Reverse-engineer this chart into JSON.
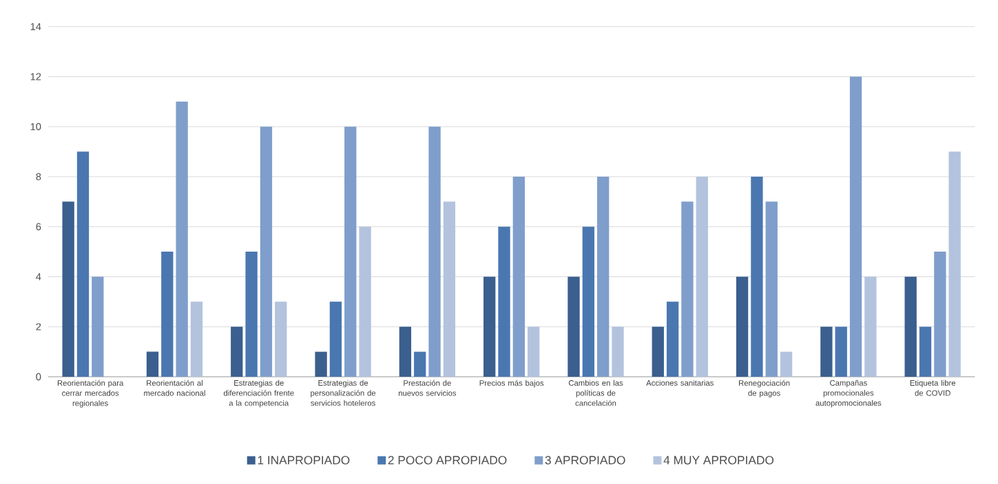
{
  "chart_data": {
    "type": "bar",
    "categories": [
      "Reorientación para cerrar mercados regionales",
      "Reorientación al mercado nacional",
      "Estrategias de diferenciación frente a la competencia",
      "Estrategias de personalización de servicios hoteleros",
      "Prestación de nuevos servicios",
      "Precios más bajos",
      "Cambios en las políticas de cancelación",
      "Acciones sanitarias",
      "Renegociación de pagos",
      "Campañas promocionales autopromocionales",
      "Etiqueta libre de COVID"
    ],
    "series": [
      {
        "name": "1 INAPROPIADO",
        "color": "#3b5f8e",
        "values": [
          7,
          1,
          2,
          1,
          2,
          4,
          4,
          2,
          4,
          2,
          4
        ]
      },
      {
        "name": "2 POCO APROPIADO",
        "color": "#4a77b0",
        "values": [
          9,
          5,
          5,
          3,
          1,
          6,
          6,
          3,
          8,
          2,
          2
        ]
      },
      {
        "name": "3 APROPIADO",
        "color": "#7f9ecb",
        "values": [
          4,
          11,
          10,
          10,
          10,
          8,
          8,
          7,
          7,
          12,
          5
        ]
      },
      {
        "name": "4 MUY APROPIADO",
        "color": "#b3c3de",
        "values": [
          0,
          3,
          3,
          6,
          7,
          2,
          2,
          8,
          1,
          4,
          9
        ]
      }
    ],
    "ylim": [
      0,
      14
    ],
    "yticks": [
      0,
      2,
      4,
      6,
      8,
      10,
      12,
      14
    ],
    "grid": "y",
    "legend": "bottom"
  }
}
